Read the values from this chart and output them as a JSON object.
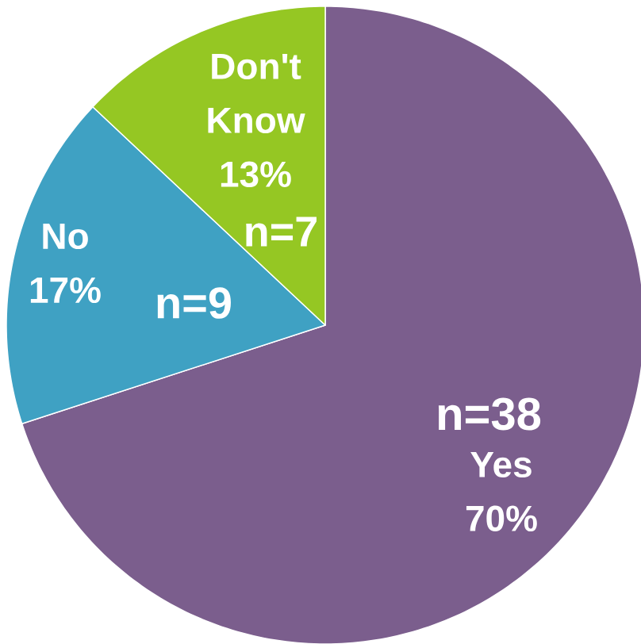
{
  "chart_data": {
    "type": "pie",
    "categories": [
      "Yes",
      "No",
      "Don't Know"
    ],
    "values": [
      70,
      17,
      13
    ],
    "value_labels": [
      "70%",
      "17%",
      "13%"
    ],
    "colors": [
      "#7b5e8d",
      "#3fa1c3",
      "#95c723"
    ],
    "annotations": [
      {
        "text": "n=38",
        "x": "Yes"
      },
      {
        "text": "n=9",
        "x": "No"
      },
      {
        "text": "n=7",
        "x": "Don't Know"
      }
    ]
  }
}
